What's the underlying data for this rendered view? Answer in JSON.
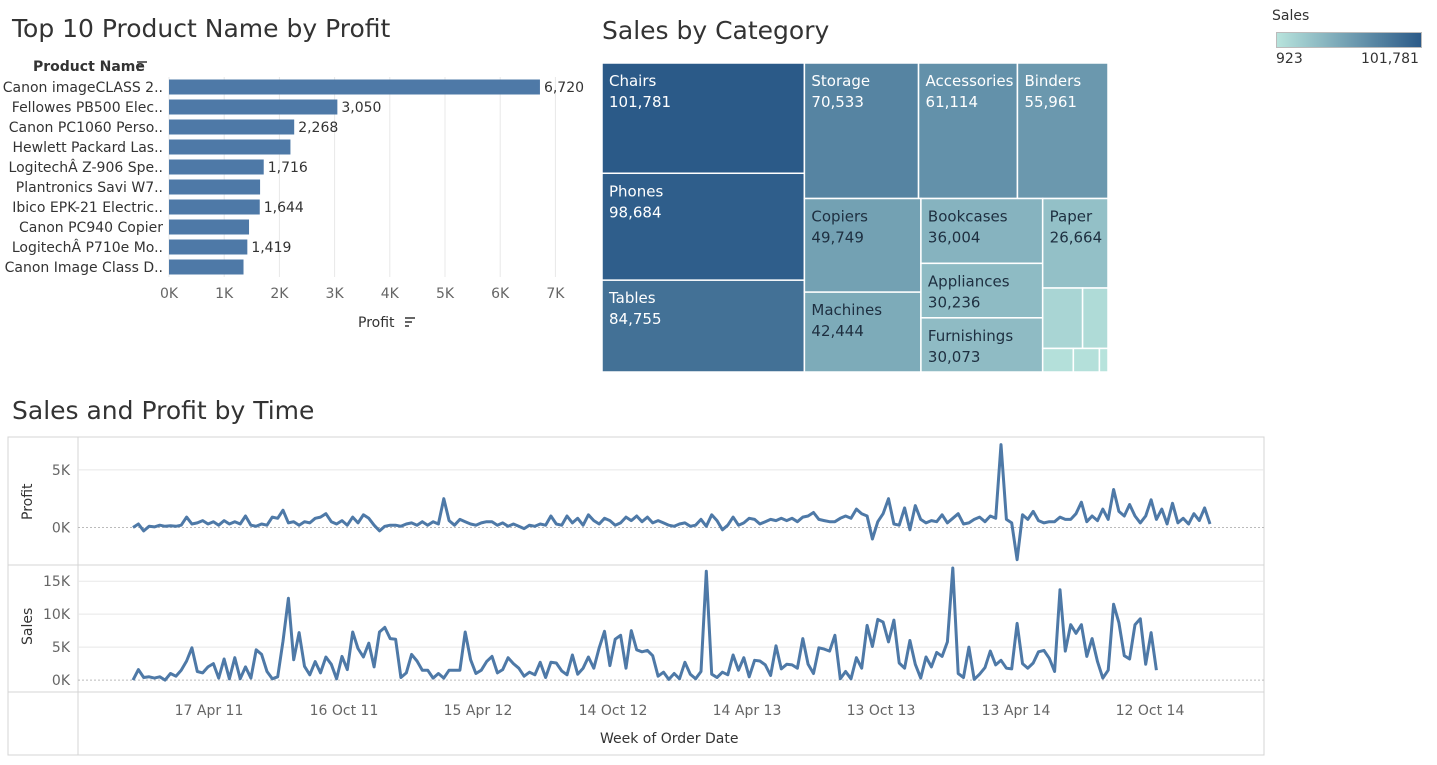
{
  "colors": {
    "bar": "#4e79a7",
    "line": "#4e79a7",
    "scale_low": "#b7e3dc",
    "scale_high": "#2b5a88",
    "grid": "#e8e8e8"
  },
  "legend": {
    "title": "Sales",
    "min": "923",
    "max": "101,781"
  },
  "chart_data": [
    {
      "type": "bar",
      "title": "Top 10 Product Name by Profit",
      "ylabel": "Product Name",
      "xlabel": "Profit",
      "xlim": [
        0,
        7500
      ],
      "x_ticks": [
        "0K",
        "1K",
        "2K",
        "3K",
        "4K",
        "5K",
        "6K",
        "7K"
      ],
      "categories": [
        "Canon imageCLASS 2..",
        "Fellowes PB500 Elec..",
        "Canon PC1060 Perso..",
        "Hewlett Packard Las..",
        "LogitechÂ Z-906 Spe..",
        "Plantronics Savi W7..",
        "Ibico EPK-21 Electric..",
        "Canon PC940 Copier",
        "LogitechÂ P710e Mo..",
        "Canon Image Class D.."
      ],
      "values": [
        6720,
        3050,
        2268,
        2200,
        1716,
        1650,
        1644,
        1450,
        1419,
        1350
      ],
      "data_labels": [
        "6,720",
        "3,050",
        "2,268",
        "",
        "1,716",
        "",
        "1,644",
        "",
        "1,419",
        ""
      ]
    },
    {
      "type": "treemap",
      "title": "Sales by Category",
      "items": [
        {
          "name": "Chairs",
          "value": 101781,
          "label": "101,781"
        },
        {
          "name": "Phones",
          "value": 98684,
          "label": "98,684"
        },
        {
          "name": "Tables",
          "value": 84755,
          "label": "84,755"
        },
        {
          "name": "Storage",
          "value": 70533,
          "label": "70,533"
        },
        {
          "name": "Accessories",
          "value": 61114,
          "label": "61,114"
        },
        {
          "name": "Binders",
          "value": 55961,
          "label": "55,961"
        },
        {
          "name": "Copiers",
          "value": 49749,
          "label": "49,749"
        },
        {
          "name": "Machines",
          "value": 42444,
          "label": "42,444"
        },
        {
          "name": "Bookcases",
          "value": 36004,
          "label": "36,004"
        },
        {
          "name": "Appliances",
          "value": 30236,
          "label": "30,236"
        },
        {
          "name": "Furnishings",
          "value": 30073,
          "label": "30,073"
        },
        {
          "name": "Paper",
          "value": 26664,
          "label": "26,664"
        },
        {
          "name": "",
          "value": 11000,
          "label": ""
        },
        {
          "name": "",
          "value": 7000,
          "label": ""
        },
        {
          "name": "",
          "value": 3300,
          "label": ""
        },
        {
          "name": "",
          "value": 2800,
          "label": ""
        },
        {
          "name": "",
          "value": 923,
          "label": ""
        }
      ]
    },
    {
      "type": "line",
      "title": "Sales and Profit by Time",
      "xlabel": "Week of Order Date",
      "x_ticks": [
        "17 Apr 11",
        "16 Oct 11",
        "15 Apr 12",
        "14 Oct 12",
        "14 Apr 13",
        "13 Oct 13",
        "13 Apr 14",
        "12 Oct 14"
      ],
      "series": [
        {
          "name": "Profit",
          "ylabel": "Profit",
          "ylim": [
            -3000,
            7600
          ],
          "y_ticks": [
            "5K",
            "0K"
          ],
          "values": [
            0,
            300,
            -300,
            100,
            50,
            200,
            100,
            150,
            100,
            200,
            900,
            300,
            400,
            600,
            300,
            500,
            200,
            600,
            300,
            500,
            300,
            1000,
            200,
            100,
            300,
            200,
            900,
            800,
            1500,
            400,
            500,
            200,
            500,
            400,
            800,
            900,
            1200,
            500,
            300,
            600,
            200,
            900,
            400,
            1100,
            800,
            200,
            -300,
            100,
            200,
            200,
            100,
            300,
            400,
            200,
            500,
            200,
            500,
            300,
            2500,
            600,
            200,
            700,
            500,
            300,
            200,
            400,
            500,
            500,
            200,
            400,
            100,
            300,
            100,
            -100,
            200,
            100,
            300,
            200,
            1000,
            300,
            200,
            1000,
            400,
            800,
            200,
            1100,
            600,
            300,
            800,
            600,
            200,
            400,
            900,
            600,
            1000,
            500,
            900,
            400,
            600,
            400,
            200,
            100,
            300,
            400,
            100,
            200,
            700,
            100,
            1100,
            600,
            -200,
            200,
            900,
            200,
            400,
            800,
            700,
            300,
            500,
            700,
            600,
            800,
            600,
            800,
            500,
            900,
            1000,
            1300,
            700,
            600,
            500,
            500,
            800,
            1000,
            800,
            1600,
            1200,
            1000,
            -1000,
            500,
            1200,
            2500,
            300,
            200,
            1700,
            -200,
            1900,
            700,
            400,
            600,
            500,
            1100,
            400,
            800,
            1200,
            300,
            400,
            700,
            900,
            500,
            1000,
            800,
            7200,
            700,
            400,
            -2800,
            1100,
            700,
            1400,
            600,
            400,
            500,
            500,
            900,
            700,
            700,
            1200,
            2200,
            500,
            1000,
            600,
            1600,
            700,
            3300,
            1400,
            1000,
            2000,
            1000,
            400,
            1000,
            2400,
            700,
            1600,
            300,
            2100,
            400,
            800,
            300,
            1200,
            600,
            1700,
            300
          ]
        },
        {
          "name": "Sales",
          "ylabel": "Sales",
          "ylim": [
            -1500,
            17000
          ],
          "y_ticks": [
            "15K",
            "10K",
            "5K",
            "0K"
          ],
          "values": [
            0,
            1600,
            400,
            500,
            300,
            500,
            0,
            1000,
            600,
            1500,
            2900,
            4900,
            1300,
            1100,
            2000,
            2500,
            300,
            3200,
            200,
            3400,
            200,
            2000,
            300,
            4600,
            3900,
            1300,
            200,
            500,
            5900,
            12400,
            3100,
            7200,
            2100,
            800,
            2800,
            1100,
            3500,
            2400,
            200,
            3600,
            1600,
            7300,
            4800,
            3500,
            5600,
            2000,
            7300,
            8000,
            6300,
            6200,
            400,
            1100,
            3900,
            2900,
            1500,
            1500,
            300,
            1000,
            300,
            1500,
            1500,
            1500,
            7300,
            3100,
            1000,
            1500,
            2800,
            3600,
            1100,
            1600,
            3400,
            2500,
            1800,
            600,
            1200,
            800,
            2700,
            400,
            2700,
            2600,
            1400,
            800,
            3800,
            900,
            1800,
            3500,
            1800,
            4900,
            7400,
            2200,
            6200,
            6800,
            1800,
            7500,
            4600,
            4300,
            4500,
            3700,
            600,
            1200,
            100,
            1000,
            200,
            2700,
            900,
            200,
            1300,
            16500,
            900,
            400,
            1200,
            800,
            3800,
            1500,
            3400,
            500,
            3000,
            2900,
            2300,
            700,
            5200,
            1700,
            2400,
            2300,
            1800,
            6300,
            2400,
            1000,
            4900,
            4700,
            4400,
            6800,
            200,
            1300,
            200,
            3400,
            1800,
            8300,
            5100,
            9200,
            8800,
            5800,
            9100,
            2600,
            1800,
            6000,
            2400,
            300,
            3500,
            2000,
            4200,
            3600,
            5800,
            17000,
            1000,
            400,
            5000,
            100,
            900,
            1900,
            4400,
            2300,
            3000,
            1800,
            1700,
            8600,
            2500,
            1800,
            2600,
            4300,
            4500,
            3300,
            1300,
            13700,
            4400,
            8400,
            7100,
            8400,
            3600,
            6300,
            2800,
            300,
            1500,
            11500,
            8700,
            3700,
            3200,
            8400,
            9300,
            2400,
            7200,
            1500
          ]
        }
      ]
    }
  ]
}
